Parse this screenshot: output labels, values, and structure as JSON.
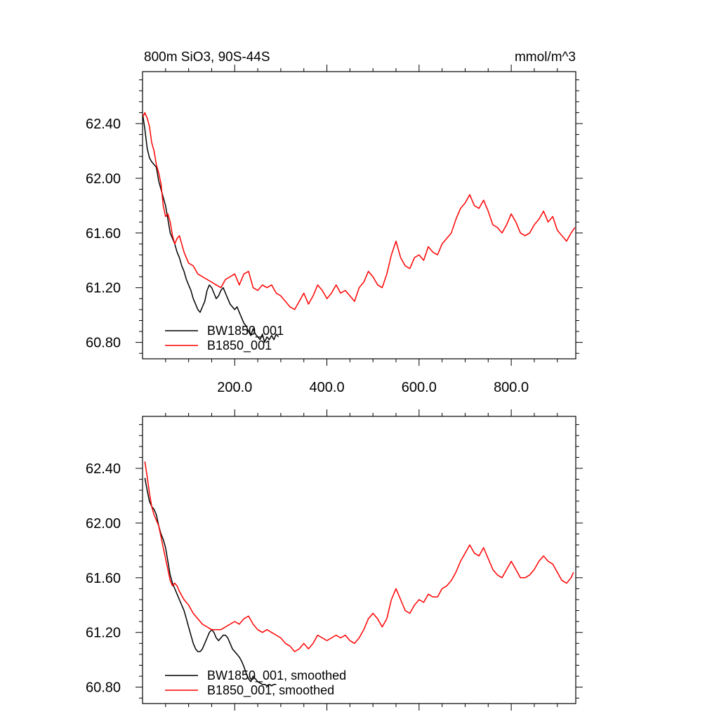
{
  "chart_data": [
    {
      "type": "line",
      "title_left": "800m SiO3, 90S-44S",
      "title_right": "mmol/m^3",
      "xlabel": "",
      "ylabel": "",
      "xlim": [
        0,
        940
      ],
      "ylim": [
        60.68,
        62.78
      ],
      "xticks": [
        200,
        400,
        600,
        800
      ],
      "xtick_labels": [
        "200.0",
        "400.0",
        "600.0",
        "800.0"
      ],
      "yticks": [
        60.8,
        61.2,
        61.6,
        62.0,
        62.4
      ],
      "ytick_labels": [
        "60.80",
        "61.20",
        "61.60",
        "62.00",
        "62.40"
      ],
      "grid": false,
      "legend_position": "bottom-left",
      "series": [
        {
          "name": "BW1850_001",
          "color": "#000000",
          "x": [
            1,
            5,
            10,
            15,
            20,
            25,
            30,
            35,
            40,
            45,
            50,
            55,
            60,
            65,
            70,
            75,
            80,
            85,
            90,
            95,
            100,
            105,
            110,
            115,
            120,
            125,
            130,
            135,
            140,
            145,
            150,
            155,
            160,
            165,
            170,
            175,
            180,
            185,
            190,
            195,
            200,
            205,
            210,
            215,
            220,
            225,
            230,
            235,
            240,
            245,
            250,
            255,
            260,
            265,
            270,
            275,
            280,
            285,
            290,
            295
          ],
          "y": [
            62.45,
            62.36,
            62.22,
            62.15,
            62.12,
            62.1,
            62.08,
            61.98,
            61.92,
            61.86,
            61.8,
            61.7,
            61.6,
            61.56,
            61.52,
            61.46,
            61.42,
            61.36,
            61.32,
            61.26,
            61.22,
            61.18,
            61.12,
            61.08,
            61.04,
            61.02,
            61.06,
            61.1,
            61.18,
            61.22,
            61.2,
            61.16,
            61.12,
            61.14,
            61.18,
            61.2,
            61.16,
            61.12,
            61.08,
            61.06,
            61.04,
            61.06,
            61.02,
            60.98,
            60.94,
            60.92,
            60.88,
            60.85,
            60.9,
            60.86,
            60.84,
            60.82,
            60.86,
            60.8,
            60.84,
            60.82,
            60.85,
            60.82,
            60.86,
            60.84
          ]
        },
        {
          "name": "B1850_001",
          "color": "#ff0000",
          "x": [
            1,
            5,
            10,
            15,
            20,
            25,
            30,
            35,
            40,
            45,
            50,
            55,
            60,
            65,
            70,
            75,
            80,
            85,
            90,
            100,
            110,
            120,
            130,
            140,
            150,
            160,
            170,
            180,
            190,
            200,
            210,
            220,
            230,
            240,
            250,
            260,
            270,
            280,
            290,
            300,
            310,
            320,
            330,
            340,
            350,
            360,
            370,
            380,
            390,
            400,
            410,
            420,
            430,
            440,
            450,
            460,
            470,
            480,
            490,
            500,
            510,
            520,
            530,
            540,
            550,
            560,
            570,
            580,
            590,
            600,
            610,
            620,
            630,
            640,
            650,
            660,
            670,
            680,
            690,
            700,
            710,
            720,
            730,
            740,
            750,
            760,
            770,
            780,
            790,
            800,
            810,
            820,
            830,
            840,
            850,
            860,
            870,
            880,
            890,
            900,
            910,
            920,
            930,
            938
          ],
          "y": [
            62.45,
            62.48,
            62.44,
            62.38,
            62.26,
            62.2,
            62.1,
            62.04,
            61.96,
            61.8,
            61.72,
            61.74,
            61.68,
            61.58,
            61.52,
            61.56,
            61.58,
            61.52,
            61.46,
            61.38,
            61.36,
            61.3,
            61.28,
            61.26,
            61.24,
            61.22,
            61.2,
            61.26,
            61.28,
            61.3,
            61.22,
            61.3,
            61.32,
            61.2,
            61.18,
            61.22,
            61.2,
            61.22,
            61.16,
            61.14,
            61.1,
            61.06,
            61.04,
            61.1,
            61.16,
            61.08,
            61.14,
            61.22,
            61.18,
            61.12,
            61.16,
            61.22,
            61.16,
            61.18,
            61.14,
            61.1,
            61.2,
            61.24,
            61.32,
            61.28,
            61.22,
            61.2,
            61.3,
            61.44,
            61.54,
            61.42,
            61.36,
            61.34,
            61.42,
            61.44,
            61.4,
            61.5,
            61.46,
            61.44,
            61.52,
            61.56,
            61.6,
            61.7,
            61.78,
            61.82,
            61.88,
            61.8,
            61.78,
            61.84,
            61.76,
            61.66,
            61.64,
            61.6,
            61.66,
            61.74,
            61.68,
            61.6,
            61.58,
            61.6,
            61.66,
            61.7,
            61.76,
            61.68,
            61.72,
            61.62,
            61.58,
            61.54,
            61.6,
            61.64
          ]
        }
      ]
    },
    {
      "type": "line",
      "title_left": "",
      "title_right": "",
      "xlabel": "",
      "ylabel": "",
      "xlim": [
        0,
        940
      ],
      "ylim": [
        60.68,
        62.78
      ],
      "xticks": [
        200,
        400,
        600,
        800
      ],
      "xtick_labels": [],
      "yticks": [
        60.8,
        61.2,
        61.6,
        62.0,
        62.4
      ],
      "ytick_labels": [
        "60.80",
        "61.20",
        "61.60",
        "62.00",
        "62.40"
      ],
      "grid": false,
      "legend_position": "bottom-left",
      "series": [
        {
          "name": "BW1850_001, smoothed",
          "color": "#000000",
          "x": [
            5,
            10,
            15,
            20,
            25,
            30,
            35,
            40,
            45,
            50,
            55,
            60,
            65,
            70,
            75,
            80,
            85,
            90,
            95,
            100,
            105,
            110,
            115,
            120,
            125,
            130,
            135,
            140,
            145,
            150,
            155,
            160,
            165,
            170,
            175,
            180,
            185,
            190,
            195,
            200,
            205,
            210,
            215,
            220,
            225,
            230,
            235,
            240,
            245,
            250,
            255,
            260,
            265,
            270,
            275,
            280,
            285,
            290
          ],
          "y": [
            62.33,
            62.24,
            62.16,
            62.12,
            62.1,
            62.06,
            61.98,
            61.92,
            61.88,
            61.82,
            61.72,
            61.62,
            61.56,
            61.52,
            61.48,
            61.44,
            61.4,
            61.36,
            61.3,
            61.24,
            61.18,
            61.12,
            61.08,
            61.06,
            61.06,
            61.08,
            61.12,
            61.16,
            61.2,
            61.22,
            61.2,
            61.16,
            61.14,
            61.16,
            61.18,
            61.18,
            61.16,
            61.12,
            61.08,
            61.06,
            61.04,
            61.02,
            60.99,
            60.95,
            60.9,
            60.86,
            60.84,
            60.88,
            60.86,
            60.84,
            60.83,
            60.82,
            60.82,
            60.81,
            60.82,
            60.81,
            60.82,
            60.82
          ]
        },
        {
          "name": "B1850_001, smoothed",
          "color": "#ff0000",
          "x": [
            5,
            10,
            15,
            20,
            25,
            30,
            35,
            40,
            45,
            50,
            55,
            60,
            65,
            70,
            75,
            80,
            90,
            100,
            110,
            120,
            130,
            140,
            150,
            160,
            170,
            180,
            190,
            200,
            210,
            220,
            230,
            240,
            250,
            260,
            270,
            280,
            290,
            300,
            310,
            320,
            330,
            340,
            350,
            360,
            370,
            380,
            390,
            400,
            410,
            420,
            430,
            440,
            450,
            460,
            470,
            480,
            490,
            500,
            510,
            520,
            530,
            540,
            550,
            560,
            570,
            580,
            590,
            600,
            610,
            620,
            630,
            640,
            650,
            660,
            670,
            680,
            690,
            700,
            710,
            720,
            730,
            740,
            750,
            760,
            770,
            780,
            790,
            800,
            810,
            820,
            830,
            840,
            850,
            860,
            870,
            880,
            890,
            900,
            910,
            920,
            930,
            935
          ],
          "y": [
            62.45,
            62.34,
            62.22,
            62.12,
            62.06,
            62.02,
            61.98,
            61.9,
            61.82,
            61.74,
            61.66,
            61.58,
            61.54,
            61.56,
            61.54,
            61.5,
            61.44,
            61.4,
            61.34,
            61.3,
            61.26,
            61.24,
            61.22,
            61.22,
            61.22,
            61.24,
            61.26,
            61.28,
            61.26,
            61.3,
            61.32,
            61.26,
            61.22,
            61.2,
            61.22,
            61.2,
            61.18,
            61.16,
            61.12,
            61.1,
            61.06,
            61.08,
            61.12,
            61.08,
            61.12,
            61.18,
            61.16,
            61.14,
            61.16,
            61.18,
            61.16,
            61.18,
            61.14,
            61.12,
            61.16,
            61.22,
            61.3,
            61.34,
            61.3,
            61.24,
            61.3,
            61.44,
            61.52,
            61.44,
            61.36,
            61.34,
            61.4,
            61.44,
            61.42,
            61.48,
            61.46,
            61.46,
            61.52,
            61.54,
            61.58,
            61.64,
            61.72,
            61.78,
            61.84,
            61.78,
            61.76,
            61.82,
            61.74,
            61.66,
            61.62,
            61.6,
            61.66,
            61.72,
            61.66,
            61.6,
            61.6,
            61.62,
            61.66,
            61.72,
            61.76,
            61.72,
            61.7,
            61.64,
            61.58,
            61.56,
            61.6,
            61.64
          ]
        }
      ]
    }
  ]
}
